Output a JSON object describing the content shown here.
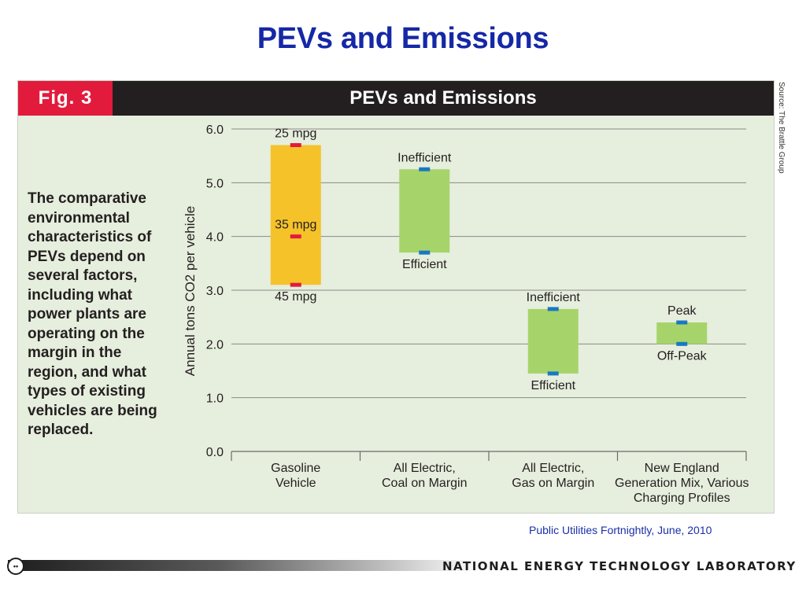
{
  "slide": {
    "title": "PEVs and Emissions",
    "citation": "Public Utilities Fortnightly, June, 2010",
    "footer_org": "NATIONAL ENERGY TECHNOLOGY LABORATORY"
  },
  "figure": {
    "label": "Fig. 3",
    "title": "PEVs and Emissions",
    "description": "The comparative environmental characteristics of PEVs depend on several factors, including what power plants are operating on the margin in the region, and what types of existing vehicles are being replaced.",
    "source": "Source: The Brattle Group"
  },
  "colors": {
    "title_blue": "#1528a6",
    "fig_label_red": "#e21b3c",
    "header_black": "#231f20",
    "panel_bg": "#e6eedd",
    "gasoline_bar": "#f5c22a",
    "electric_bar": "#a6d46a",
    "red_marker": "#e21b3c",
    "blue_marker": "#1a78c2"
  },
  "chart_data": {
    "type": "floating-bar",
    "ylabel": "Annual tons CO2 per vehicle",
    "ylim": [
      0,
      6
    ],
    "yticks": [
      "0.0",
      "1.0",
      "2.0",
      "3.0",
      "4.0",
      "5.0",
      "6.0"
    ],
    "grid": true,
    "categories": [
      "Gasoline Vehicle",
      "All Electric, Coal on Margin",
      "All Electric, Gas on Margin",
      "New England Generation Mix, Various Charging Profiles"
    ],
    "category_lines": [
      [
        "Gasoline",
        "Vehicle"
      ],
      [
        "All Electric,",
        "Coal on Margin"
      ],
      [
        "All Electric,",
        "Gas on Margin"
      ],
      [
        "New England",
        "Generation Mix, Various",
        "Charging Profiles"
      ]
    ],
    "ranges": [
      {
        "category": "Gasoline Vehicle",
        "low": 3.1,
        "high": 5.7,
        "color": "#f5c22a",
        "markers": [
          {
            "label": "25 mpg",
            "value": 5.7,
            "color": "#e21b3c"
          },
          {
            "label": "35 mpg",
            "value": 4.0,
            "color": "#e21b3c"
          },
          {
            "label": "45 mpg",
            "value": 3.1,
            "color": "#e21b3c"
          }
        ]
      },
      {
        "category": "All Electric, Coal on Margin",
        "low": 3.7,
        "high": 5.25,
        "color": "#a6d46a",
        "markers": [
          {
            "label": "Inefficient",
            "value": 5.25,
            "color": "#1a78c2"
          },
          {
            "label": "Efficient",
            "value": 3.7,
            "color": "#1a78c2"
          }
        ]
      },
      {
        "category": "All Electric, Gas on Margin",
        "low": 1.45,
        "high": 2.65,
        "color": "#a6d46a",
        "markers": [
          {
            "label": "Inefficient",
            "value": 2.65,
            "color": "#1a78c2"
          },
          {
            "label": "Efficient",
            "value": 1.45,
            "color": "#1a78c2"
          }
        ]
      },
      {
        "category": "New England Generation Mix, Various Charging Profiles",
        "low": 2.0,
        "high": 2.4,
        "color": "#a6d46a",
        "markers": [
          {
            "label": "Peak",
            "value": 2.4,
            "color": "#1a78c2"
          },
          {
            "label": "Off-Peak",
            "value": 2.0,
            "color": "#1a78c2"
          }
        ]
      }
    ]
  }
}
